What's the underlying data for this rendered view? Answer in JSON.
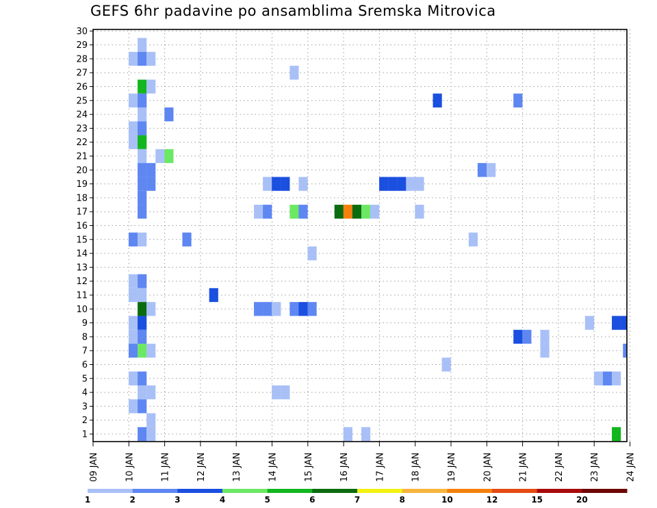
{
  "chart_data": {
    "type": "heatmap",
    "title": "GEFS 6hr padavine po ansamblima Sremska Mitrovica",
    "x_tick_labels": [
      "09 JAN",
      "10 JAN",
      "11 JAN",
      "12 JAN",
      "13 JAN",
      "14 JAN",
      "15 JAN",
      "16 JAN",
      "17 JAN",
      "18 JAN",
      "19 JAN",
      "20 JAN",
      "21 JAN",
      "22 JAN",
      "23 JAN",
      "24 JAN"
    ],
    "y_range": [
      1,
      30
    ],
    "y_tick_labels": [
      "1",
      "2",
      "3",
      "4",
      "5",
      "6",
      "7",
      "8",
      "9",
      "10",
      "11",
      "12",
      "13",
      "14",
      "15",
      "16",
      "17",
      "18",
      "19",
      "20",
      "21",
      "22",
      "23",
      "24",
      "25",
      "26",
      "27",
      "28",
      "29",
      "30"
    ],
    "grid": "dotted",
    "legend_position": "bottom",
    "legend": {
      "labels": [
        "1",
        "2",
        "3",
        "4",
        "5",
        "6",
        "7",
        "8",
        "10",
        "12",
        "15",
        "20"
      ],
      "colors": [
        "#a9c0f7",
        "#5e87f2",
        "#1b4fe0",
        "#6ce865",
        "#13b61f",
        "#0b6c0f",
        "#f4f212",
        "#f7b53e",
        "#f4800d",
        "#e54a13",
        "#a80a08",
        "#6e0605"
      ]
    },
    "cells": [
      {
        "day": 10.12,
        "member": 28,
        "color": "#a9c0f7"
      },
      {
        "day": 10.37,
        "member": 29,
        "color": "#a9c0f7"
      },
      {
        "day": 10.37,
        "member": 28,
        "color": "#5e87f2"
      },
      {
        "day": 10.62,
        "member": 28,
        "color": "#a9c0f7"
      },
      {
        "day": 14.62,
        "member": 27,
        "color": "#a9c0f7"
      },
      {
        "day": 10.37,
        "member": 26,
        "color": "#13b61f"
      },
      {
        "day": 10.62,
        "member": 26,
        "color": "#a9c0f7"
      },
      {
        "day": 10.12,
        "member": 25,
        "color": "#a9c0f7"
      },
      {
        "day": 10.37,
        "member": 25,
        "color": "#5e87f2"
      },
      {
        "day": 18.62,
        "member": 25,
        "color": "#1b4fe0"
      },
      {
        "day": 20.87,
        "member": 25,
        "color": "#5e87f2"
      },
      {
        "day": 10.37,
        "member": 24,
        "color": "#a9c0f7"
      },
      {
        "day": 11.12,
        "member": 24,
        "color": "#5e87f2"
      },
      {
        "day": 10.12,
        "member": 23,
        "color": "#a9c0f7"
      },
      {
        "day": 10.37,
        "member": 23,
        "color": "#5e87f2"
      },
      {
        "day": 10.12,
        "member": 22,
        "color": "#a9c0f7"
      },
      {
        "day": 10.37,
        "member": 22,
        "color": "#13b61f"
      },
      {
        "day": 10.37,
        "member": 21,
        "color": "#a9c0f7"
      },
      {
        "day": 10.87,
        "member": 21,
        "color": "#a9c0f7"
      },
      {
        "day": 11.12,
        "member": 21,
        "color": "#6ce865"
      },
      {
        "day": 10.37,
        "member": 20,
        "color": "#5e87f2"
      },
      {
        "day": 10.62,
        "member": 20,
        "color": "#5e87f2"
      },
      {
        "day": 19.87,
        "member": 20,
        "color": "#5e87f2"
      },
      {
        "day": 20.12,
        "member": 20,
        "color": "#a9c0f7"
      },
      {
        "day": 10.37,
        "member": 19,
        "color": "#5e87f2"
      },
      {
        "day": 10.62,
        "member": 19,
        "color": "#5e87f2"
      },
      {
        "day": 13.87,
        "member": 19,
        "color": "#a9c0f7"
      },
      {
        "day": 14.12,
        "member": 19,
        "color": "#1b4fe0"
      },
      {
        "day": 14.37,
        "member": 19,
        "color": "#1b4fe0"
      },
      {
        "day": 14.87,
        "member": 19,
        "color": "#a9c0f7"
      },
      {
        "day": 17.12,
        "member": 19,
        "color": "#1b4fe0"
      },
      {
        "day": 17.37,
        "member": 19,
        "color": "#1b4fe0"
      },
      {
        "day": 17.62,
        "member": 19,
        "color": "#1b4fe0"
      },
      {
        "day": 17.87,
        "member": 19,
        "color": "#a9c0f7"
      },
      {
        "day": 18.12,
        "member": 19,
        "color": "#a9c0f7"
      },
      {
        "day": 10.37,
        "member": 18,
        "color": "#5e87f2"
      },
      {
        "day": 10.37,
        "member": 17,
        "color": "#5e87f2"
      },
      {
        "day": 13.62,
        "member": 17,
        "color": "#a9c0f7"
      },
      {
        "day": 13.87,
        "member": 17,
        "color": "#5e87f2"
      },
      {
        "day": 14.62,
        "member": 17,
        "color": "#6ce865"
      },
      {
        "day": 14.87,
        "member": 17,
        "color": "#5e87f2"
      },
      {
        "day": 15.87,
        "member": 17,
        "color": "#0b6c0f"
      },
      {
        "day": 16.12,
        "member": 17,
        "color": "#f4800d"
      },
      {
        "day": 16.37,
        "member": 17,
        "color": "#0b6c0f"
      },
      {
        "day": 16.62,
        "member": 17,
        "color": "#6ce865"
      },
      {
        "day": 16.87,
        "member": 17,
        "color": "#a9c0f7"
      },
      {
        "day": 18.12,
        "member": 17,
        "color": "#a9c0f7"
      },
      {
        "day": 10.12,
        "member": 15,
        "color": "#5e87f2"
      },
      {
        "day": 10.37,
        "member": 15,
        "color": "#a9c0f7"
      },
      {
        "day": 11.62,
        "member": 15,
        "color": "#5e87f2"
      },
      {
        "day": 19.62,
        "member": 15,
        "color": "#a9c0f7"
      },
      {
        "day": 15.12,
        "member": 14,
        "color": "#a9c0f7"
      },
      {
        "day": 10.12,
        "member": 12,
        "color": "#a9c0f7"
      },
      {
        "day": 10.37,
        "member": 12,
        "color": "#5e87f2"
      },
      {
        "day": 10.12,
        "member": 11,
        "color": "#a9c0f7"
      },
      {
        "day": 10.37,
        "member": 11,
        "color": "#a9c0f7"
      },
      {
        "day": 12.37,
        "member": 11,
        "color": "#1b4fe0"
      },
      {
        "day": 10.37,
        "member": 10,
        "color": "#0b6c0f"
      },
      {
        "day": 10.62,
        "member": 10,
        "color": "#a9c0f7"
      },
      {
        "day": 13.62,
        "member": 10,
        "color": "#5e87f2"
      },
      {
        "day": 13.87,
        "member": 10,
        "color": "#5e87f2"
      },
      {
        "day": 14.12,
        "member": 10,
        "color": "#a9c0f7"
      },
      {
        "day": 14.62,
        "member": 10,
        "color": "#5e87f2"
      },
      {
        "day": 14.87,
        "member": 10,
        "color": "#1b4fe0"
      },
      {
        "day": 15.12,
        "member": 10,
        "color": "#5e87f2"
      },
      {
        "day": 10.12,
        "member": 9,
        "color": "#a9c0f7"
      },
      {
        "day": 10.37,
        "member": 9,
        "color": "#1b4fe0"
      },
      {
        "day": 22.87,
        "member": 9,
        "color": "#a9c0f7"
      },
      {
        "day": 23.62,
        "member": 9,
        "color": "#1b4fe0"
      },
      {
        "day": 23.87,
        "member": 9,
        "color": "#1b4fe0"
      },
      {
        "day": 10.12,
        "member": 8,
        "color": "#a9c0f7"
      },
      {
        "day": 10.37,
        "member": 8,
        "color": "#5e87f2"
      },
      {
        "day": 20.87,
        "member": 8,
        "color": "#1b4fe0"
      },
      {
        "day": 21.12,
        "member": 8,
        "color": "#5e87f2"
      },
      {
        "day": 21.62,
        "member": 8,
        "color": "#a9c0f7"
      },
      {
        "day": 10.12,
        "member": 7,
        "color": "#5e87f2"
      },
      {
        "day": 10.37,
        "member": 7,
        "color": "#6ce865"
      },
      {
        "day": 10.62,
        "member": 7,
        "color": "#a9c0f7"
      },
      {
        "day": 21.62,
        "member": 7,
        "color": "#a9c0f7"
      },
      {
        "day": 23.93,
        "member": 7,
        "color": "#5e87f2"
      },
      {
        "day": 18.87,
        "member": 6,
        "color": "#a9c0f7"
      },
      {
        "day": 10.12,
        "member": 5,
        "color": "#a9c0f7"
      },
      {
        "day": 10.37,
        "member": 5,
        "color": "#5e87f2"
      },
      {
        "day": 23.12,
        "member": 5,
        "color": "#a9c0f7"
      },
      {
        "day": 23.37,
        "member": 5,
        "color": "#5e87f2"
      },
      {
        "day": 23.62,
        "member": 5,
        "color": "#a9c0f7"
      },
      {
        "day": 10.37,
        "member": 4,
        "color": "#a9c0f7"
      },
      {
        "day": 10.62,
        "member": 4,
        "color": "#a9c0f7"
      },
      {
        "day": 14.12,
        "member": 4,
        "color": "#a9c0f7"
      },
      {
        "day": 14.37,
        "member": 4,
        "color": "#a9c0f7"
      },
      {
        "day": 10.12,
        "member": 3,
        "color": "#a9c0f7"
      },
      {
        "day": 10.37,
        "member": 3,
        "color": "#5e87f2"
      },
      {
        "day": 10.62,
        "member": 2,
        "color": "#a9c0f7"
      },
      {
        "day": 10.37,
        "member": 1,
        "color": "#5e87f2"
      },
      {
        "day": 10.62,
        "member": 1,
        "color": "#a9c0f7"
      },
      {
        "day": 16.12,
        "member": 1,
        "color": "#a9c0f7"
      },
      {
        "day": 16.62,
        "member": 1,
        "color": "#a9c0f7"
      },
      {
        "day": 23.62,
        "member": 1,
        "color": "#13b61f"
      }
    ]
  }
}
